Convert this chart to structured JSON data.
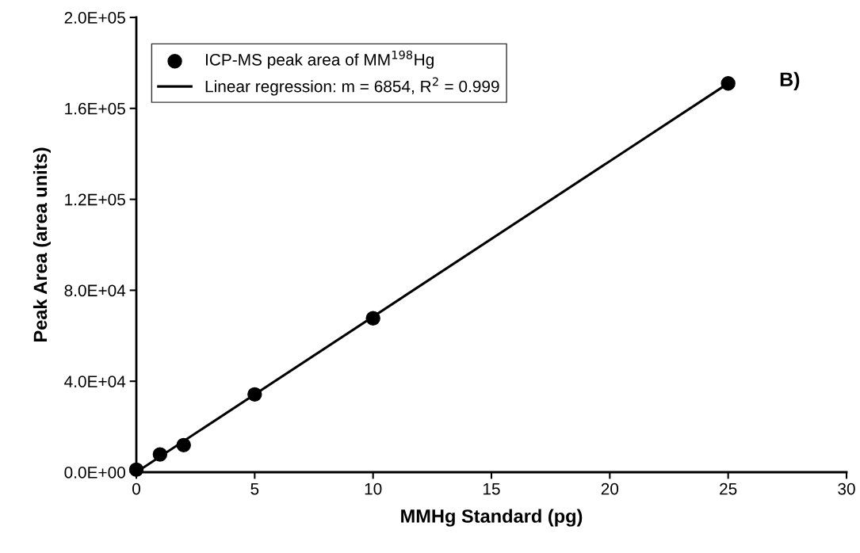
{
  "chart_data": {
    "type": "scatter",
    "xlabel": "MMHg Standard (pg)",
    "ylabel": "Peak Area (area units)",
    "annotations": [
      "B)"
    ],
    "series": [
      {
        "name": "ICP-MS peak area of MM$^{198}$Hg",
        "color": "#000000",
        "marker": "circle",
        "x": [
          0,
          1,
          2,
          5,
          10,
          25
        ],
        "values": [
          1100,
          7800,
          11900,
          34200,
          67700,
          171000
        ]
      },
      {
        "name": "Linear regression: m = 6854, R$^{2}$ = 0.999",
        "type": "line",
        "color": "#000000",
        "marker": "none",
        "line_style": "solid",
        "x": [
          0,
          25
        ],
        "values": [
          0,
          171000
        ]
      }
    ],
    "xlim": [
      0,
      30
    ],
    "xticks": [
      0,
      5,
      10,
      15,
      20,
      25,
      30
    ],
    "ylim": [
      0,
      200000
    ],
    "yticks": [
      {
        "value": 0,
        "label": "0.0E+00"
      },
      {
        "value": 40000,
        "label": "4.0E+04"
      },
      {
        "value": 80000,
        "label": "8.0E+04"
      },
      {
        "value": 120000,
        "label": "1.2E+05"
      },
      {
        "value": 160000,
        "label": "1.6E+05"
      },
      {
        "value": 200000,
        "label": "2.0E+05"
      }
    ],
    "grid": false,
    "legend": "top left"
  }
}
